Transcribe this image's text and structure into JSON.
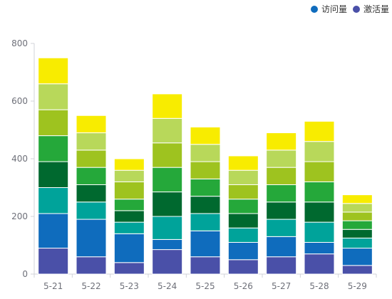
{
  "legend": [
    {
      "label": "访问量",
      "color": "#0f6cbd"
    },
    {
      "label": "激活量",
      "color": "#4a50a8"
    }
  ],
  "chart_data": {
    "type": "bar",
    "stacked": true,
    "categories": [
      "5-21",
      "5-22",
      "5-23",
      "5-24",
      "5-25",
      "5-26",
      "5-27",
      "5-28",
      "5-29"
    ],
    "ylim": [
      0,
      800
    ],
    "yticks": [
      0,
      200,
      400,
      600,
      800
    ],
    "grid": false,
    "legend_position": "top-right",
    "series": [
      {
        "color": "#4a50a8",
        "values": [
          90,
          60,
          40,
          85,
          60,
          50,
          60,
          70,
          30
        ]
      },
      {
        "color": "#0f6cbd",
        "values": [
          120,
          130,
          100,
          35,
          90,
          60,
          70,
          40,
          60
        ]
      },
      {
        "color": "#00a39a",
        "values": [
          90,
          60,
          40,
          80,
          60,
          50,
          60,
          70,
          35
        ]
      },
      {
        "color": "#00692f",
        "values": [
          90,
          60,
          40,
          85,
          60,
          50,
          60,
          70,
          30
        ]
      },
      {
        "color": "#25a83a",
        "values": [
          90,
          60,
          40,
          85,
          60,
          50,
          60,
          70,
          30
        ]
      },
      {
        "color": "#9ec31f",
        "values": [
          90,
          60,
          60,
          85,
          60,
          50,
          60,
          70,
          30
        ]
      },
      {
        "color": "#b8d85a",
        "values": [
          90,
          60,
          40,
          85,
          60,
          50,
          60,
          70,
          30
        ]
      },
      {
        "color": "#f8ec00",
        "values": [
          90,
          60,
          40,
          85,
          60,
          50,
          60,
          70,
          30
        ]
      }
    ]
  }
}
